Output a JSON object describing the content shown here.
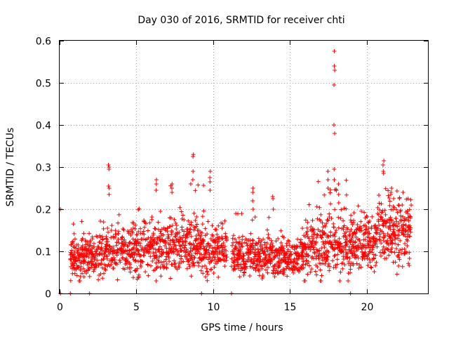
{
  "chart_data": {
    "type": "scatter",
    "title": "Day 030 of 2016, SRMTID for receiver chti",
    "xlabel": "GPS time / hours",
    "ylabel": "SRMTID / TECUs",
    "xlim": [
      0,
      24
    ],
    "ylim": [
      0,
      0.6
    ],
    "x_ticks": [
      0,
      5,
      10,
      15,
      20
    ],
    "y_ticks": [
      0,
      0.1,
      0.2,
      0.3,
      0.4,
      0.5,
      0.6
    ],
    "x_tick_labels": [
      "0",
      "5",
      "10",
      "15",
      "20"
    ],
    "y_tick_labels": [
      "0",
      "0.1",
      "0.2",
      "0.3",
      "0.4",
      "0.5",
      "0.6"
    ],
    "grid": true,
    "marker": "+",
    "color": "#ff0000",
    "series": [
      {
        "name": "SRMTID",
        "background_segments": [
          {
            "x_start": 0.7,
            "x_end": 2.6,
            "base": 0.085,
            "spread": 0.035,
            "spike": 0.2,
            "step": 0.02
          },
          {
            "x_start": 2.6,
            "x_end": 5.5,
            "base": 0.1,
            "spread": 0.04,
            "spike": 0.22,
            "step": 0.02
          },
          {
            "x_start": 5.5,
            "x_end": 9.5,
            "base": 0.11,
            "spread": 0.045,
            "spike": 0.26,
            "step": 0.02
          },
          {
            "x_start": 9.5,
            "x_end": 10.9,
            "base": 0.1,
            "spread": 0.04,
            "spike": 0.18,
            "step": 0.02
          },
          {
            "x_start": 11.2,
            "x_end": 14.0,
            "base": 0.09,
            "spread": 0.035,
            "spike": 0.2,
            "step": 0.02
          },
          {
            "x_start": 14.0,
            "x_end": 15.8,
            "base": 0.085,
            "spread": 0.03,
            "spike": 0.16,
            "step": 0.02
          },
          {
            "x_start": 15.8,
            "x_end": 19.0,
            "base": 0.11,
            "spread": 0.05,
            "spike": 0.27,
            "step": 0.02
          },
          {
            "x_start": 19.0,
            "x_end": 20.6,
            "base": 0.12,
            "spread": 0.04,
            "spike": 0.21,
            "step": 0.02
          },
          {
            "x_start": 20.6,
            "x_end": 22.9,
            "base": 0.15,
            "spread": 0.055,
            "spike": 0.25,
            "step": 0.02
          }
        ],
        "peaks": [
          {
            "x": 3.2,
            "y": [
              0.305,
              0.3,
              0.295,
              0.255,
              0.25,
              0.235
            ]
          },
          {
            "x": 6.3,
            "y": [
              0.27,
              0.26,
              0.245
            ]
          },
          {
            "x": 7.3,
            "y": [
              0.26,
              0.25,
              0.24
            ]
          },
          {
            "x": 8.7,
            "y": [
              0.33,
              0.325,
              0.29,
              0.27
            ]
          },
          {
            "x": 9.8,
            "y": [
              0.29,
              0.275,
              0.265,
              0.245
            ]
          },
          {
            "x": 12.6,
            "y": [
              0.25,
              0.24,
              0.22,
              0.2
            ]
          },
          {
            "x": 13.9,
            "y": [
              0.23,
              0.225,
              0.2
            ]
          },
          {
            "x": 17.5,
            "y": [
              0.29,
              0.27,
              0.25
            ]
          },
          {
            "x": 17.9,
            "y": [
              0.575,
              0.54,
              0.53,
              0.495,
              0.4,
              0.38,
              0.295,
              0.27
            ]
          },
          {
            "x": 18.2,
            "y": [
              0.26,
              0.235,
              0.215
            ]
          },
          {
            "x": 21.1,
            "y": [
              0.315,
              0.305,
              0.29,
              0.285
            ]
          },
          {
            "x": 21.6,
            "y": [
              0.25,
              0.24,
              0.235
            ]
          }
        ],
        "zero_points": [
          0.05,
          0.7,
          1.95,
          9.25,
          11.2,
          18.95
        ],
        "isolated_points": [
          {
            "x": 0.05,
            "y": 0.2
          }
        ]
      }
    ]
  }
}
